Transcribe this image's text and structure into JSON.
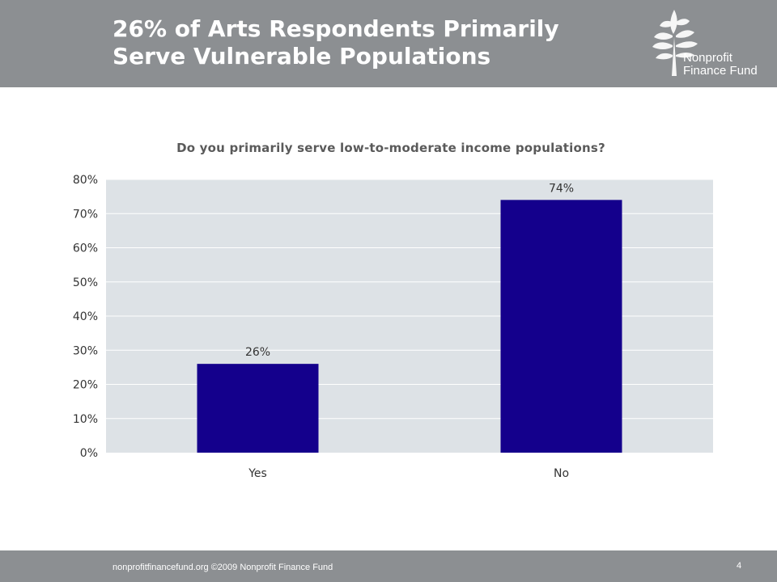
{
  "slide": {
    "title_line1": "26% of Arts Respondents Primarily",
    "title_line2": "Serve Vulnerable Populations"
  },
  "logo": {
    "line1": "Nonprofit",
    "line2": "Finance Fund"
  },
  "chart_data": {
    "type": "bar",
    "title": "Do you primarily serve low-to-moderate income populations?",
    "categories": [
      "Yes",
      "No"
    ],
    "values": [
      26,
      74
    ],
    "data_labels": [
      "26%",
      "74%"
    ],
    "ylim": [
      0,
      80
    ],
    "yticks": [
      "0%",
      "10%",
      "20%",
      "30%",
      "40%",
      "50%",
      "60%",
      "70%",
      "80%"
    ],
    "grid": true,
    "legend": "none",
    "bar_color": "#14008c",
    "plot_background": "#dde2e6"
  },
  "footer": {
    "text": "nonprofitfinancefund.org  ©2009 Nonprofit Finance Fund",
    "page_number": "4"
  }
}
